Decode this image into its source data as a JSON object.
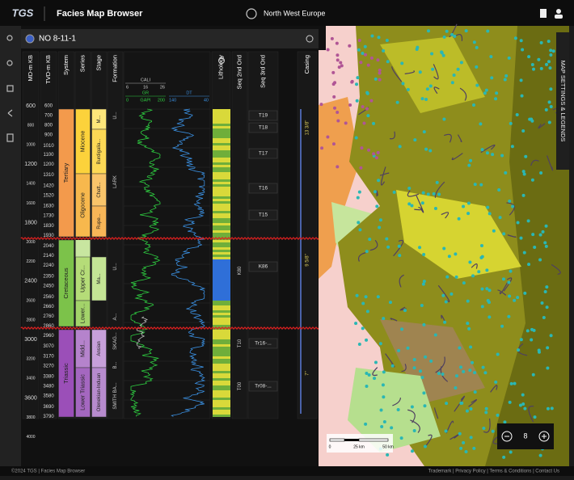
{
  "header": {
    "logo": "TGS",
    "title": "Facies Map Browser",
    "region": "North West Europe"
  },
  "well": {
    "name": "NO 8-11-1",
    "columns": [
      "MD-m KB",
      "TVD-m KB",
      "System",
      "Series",
      "Stage",
      "Formation",
      "Lithology",
      "Seq 2nd Ord",
      "Seq 3rd Ord",
      "Casing"
    ],
    "md_ticks": [
      600,
      800,
      1000,
      1200,
      1400,
      1600,
      1800,
      2000,
      2200,
      2400,
      2600,
      2800,
      3000,
      3200,
      3400,
      3600,
      3800,
      4000
    ],
    "tvd_ticks": [
      600,
      700,
      800,
      900,
      1010,
      1100,
      1200,
      1310,
      1420,
      1520,
      1630,
      1730,
      1830,
      1930,
      2040,
      2140,
      2240,
      2350,
      2450,
      2560,
      2660,
      2760,
      2860,
      2960,
      3070,
      3170,
      3270,
      3380,
      3480,
      3580,
      3690,
      3790
    ],
    "cali": {
      "name": "CALI",
      "ticks": [
        6,
        16,
        26
      ]
    },
    "gr": {
      "name": "GR",
      "unit": "GAPI",
      "ticks": [
        0,
        200
      ]
    },
    "dt": {
      "name": "DT",
      "ticks": [
        140,
        40
      ]
    },
    "system": [
      "Tertiary",
      "Cretaceous",
      "Triassic"
    ],
    "series": [
      "Miocene",
      "Oligocene",
      "Upper Cr...",
      "Lower...",
      "Midd...",
      "Lower Triassic"
    ],
    "stage": [
      "M...",
      "Burdigalia...",
      "Chatt...",
      "Rupe...",
      "Ma...",
      "Ansian",
      "Olenekian-Induan"
    ],
    "formation": [
      "U...",
      "LARK",
      "U...",
      "A...",
      "SKAG...",
      "B...",
      "SMITH BA..."
    ],
    "seq_2nd": [
      "K80",
      "T10",
      "T00"
    ],
    "seq_3rd": [
      "T19",
      "T18",
      "T17",
      "T16",
      "T15",
      "K86",
      "Tr16-...",
      "Tr08-..."
    ],
    "casing": [
      "13 3/8\"",
      "9 5/8\"",
      "7\""
    ]
  },
  "map": {
    "panel_tab": "MAP SETTINGS & LEGENDS",
    "zoom": 8,
    "scale": [
      "0",
      "25 km",
      "50 km"
    ]
  },
  "footer": {
    "left": "©2024 TGS | Facies Map Browser",
    "right": "Trademark | Privacy Policy | Terms & Conditions | Contact Us"
  }
}
